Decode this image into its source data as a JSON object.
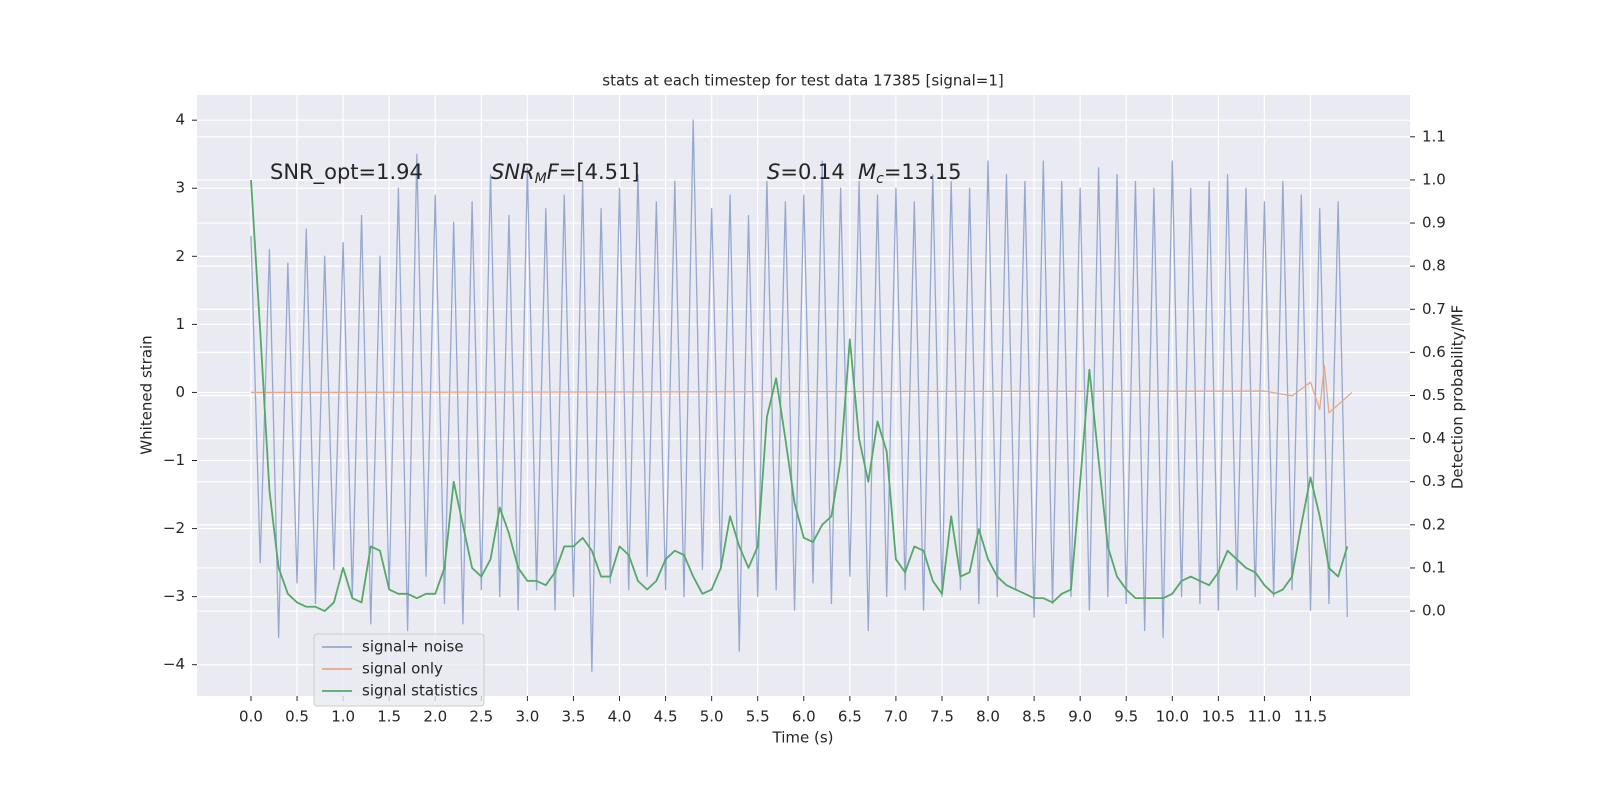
{
  "chart_data": {
    "type": "line",
    "title": "stats at each timestep for test data 17385 [signal=1]",
    "xlabel": "Time (s)",
    "ylabel": "Whitened strain",
    "y2label": "Detection probability/MF",
    "annotations": [
      [
        {
          "text": "SNR_opt=1.94",
          "style": "normal"
        }
      ],
      [
        {
          "text": "SNR",
          "style": "italic"
        },
        {
          "text": "M",
          "style": "sub"
        },
        {
          "text": "F",
          "style": "italic"
        },
        {
          "text": "=[4.51]",
          "style": "normal"
        }
      ],
      [
        {
          "text": "S",
          "style": "italic"
        },
        {
          "text": "=0.14",
          "style": "normal"
        }
      ],
      [
        {
          "text": "M",
          "style": "italic"
        },
        {
          "text": "c",
          "style": "sub"
        },
        {
          "text": "=13.15",
          "style": "normal"
        }
      ]
    ],
    "xlim": [
      -0.586,
      12.58
    ],
    "ylim": [
      -4.46,
      4.37
    ],
    "y2lim": [
      -0.197,
      1.197
    ],
    "xticks": [
      {
        "value": 0,
        "label": "0.0"
      },
      0.5,
      {
        "value": 1,
        "label": "1.0"
      },
      1.5,
      {
        "value": 2,
        "label": "2.0"
      },
      2.5,
      {
        "value": 3,
        "label": "3.0"
      },
      3.5,
      {
        "value": 4,
        "label": "4.0"
      },
      4.5,
      {
        "value": 5,
        "label": "5.0"
      },
      5.5,
      {
        "value": 6,
        "label": "6.0"
      },
      6.5,
      {
        "value": 7,
        "label": "7.0"
      },
      7.5,
      {
        "value": 8,
        "label": "8.0"
      },
      8.5,
      {
        "value": 9,
        "label": "9.0"
      },
      9.5,
      {
        "value": 10,
        "label": "10.0"
      },
      10.5,
      {
        "value": 11,
        "label": "11.0"
      },
      11.5
    ],
    "yticks": [
      {
        "value": -4,
        "label": "−4"
      },
      {
        "value": -3,
        "label": "−3"
      },
      {
        "value": -2,
        "label": "−2"
      },
      {
        "value": -1,
        "label": "−1"
      },
      0,
      1,
      2,
      3,
      4
    ],
    "y2ticks": [
      {
        "value": 0,
        "label": "0.0"
      },
      0.1,
      0.2,
      0.3,
      0.4,
      0.5,
      0.6,
      0.7,
      0.8,
      0.9,
      {
        "value": 1,
        "label": "1.0"
      },
      1.1
    ],
    "grid": true,
    "legend": "lower left",
    "x": [
      0,
      0.1,
      0.2,
      0.3,
      0.4,
      0.5,
      0.6,
      0.7,
      0.8,
      0.9,
      1,
      1.1,
      1.2,
      1.3,
      1.4,
      1.5,
      1.6,
      1.7,
      1.8,
      1.9,
      2,
      2.1,
      2.2,
      2.3,
      2.4,
      2.5,
      2.6,
      2.7,
      2.8,
      2.9,
      3,
      3.1,
      3.2,
      3.3,
      3.4,
      3.5,
      3.6,
      3.7,
      3.8,
      3.9,
      4,
      4.1,
      4.2,
      4.3,
      4.4,
      4.5,
      4.6,
      4.7,
      4.8,
      4.9,
      5,
      5.1,
      5.2,
      5.3,
      5.4,
      5.5,
      5.6,
      5.7,
      5.8,
      5.9,
      6,
      6.1,
      6.2,
      6.3,
      6.4,
      6.5,
      6.6,
      6.7,
      6.8,
      6.9,
      7,
      7.1,
      7.2,
      7.3,
      7.4,
      7.5,
      7.6,
      7.7,
      7.8,
      7.9,
      8,
      8.1,
      8.2,
      8.3,
      8.4,
      8.5,
      8.6,
      8.7,
      8.8,
      8.9,
      9,
      9.1,
      9.2,
      9.3,
      9.4,
      9.5,
      9.6,
      9.7,
      9.8,
      9.9,
      10,
      10.1,
      10.2,
      10.3,
      10.4,
      10.5,
      10.6,
      10.7,
      10.8,
      10.9,
      11,
      11.1,
      11.2,
      11.3,
      11.4,
      11.5,
      11.6,
      11.7,
      11.8,
      11.9
    ],
    "series": [
      {
        "name": "signal+ noise",
        "color": "#97a8cf",
        "values": [
          2.3,
          -2.5,
          2.1,
          -3.6,
          1.9,
          -2.8,
          2.4,
          -3.1,
          2.0,
          -2.6,
          2.2,
          -3.0,
          2.6,
          -3.4,
          2.0,
          -2.9,
          3.0,
          -3.5,
          3.5,
          -2.7,
          2.9,
          -3.1,
          2.5,
          -3.4,
          2.8,
          -2.9,
          3.2,
          -3.0,
          2.6,
          -3.2,
          3.3,
          -2.9,
          2.7,
          -3.2,
          2.9,
          -3.0,
          3.1,
          -4.1,
          2.7,
          -2.8,
          3.0,
          -2.9,
          3.2,
          -2.7,
          2.8,
          -2.9,
          3.1,
          -3.0,
          4.0,
          -2.6,
          2.7,
          -2.6,
          2.9,
          -3.8,
          2.6,
          -3.0,
          3.1,
          -2.9,
          2.8,
          -3.2,
          2.9,
          -2.8,
          3.4,
          -3.1,
          3.0,
          -2.7,
          3.1,
          -3.5,
          2.9,
          -3.0,
          3.0,
          -2.9,
          2.8,
          -3.2,
          3.2,
          -3.0,
          3.1,
          -2.9,
          3.0,
          -3.1,
          3.4,
          -3.0,
          3.2,
          -2.9,
          3.1,
          -3.3,
          3.4,
          -3.1,
          3.1,
          -3.0,
          3.0,
          -3.2,
          3.3,
          -3.0,
          3.2,
          -3.1,
          3.1,
          -3.5,
          3.0,
          -3.6,
          3.4,
          -3.0,
          3.0,
          -3.1,
          3.1,
          -3.2,
          3.2,
          -2.9,
          3.0,
          -3.0,
          2.8,
          -3.0,
          3.1,
          -2.9,
          2.9,
          -3.2,
          2.7,
          -3.1,
          2.8,
          -3.3
        ]
      },
      {
        "name": "signal only",
        "color": "#e6a88a",
        "x": [
          0,
          11.0,
          11.3,
          11.5,
          11.6,
          11.65,
          11.7,
          11.95
        ],
        "values": [
          0,
          0.02,
          -0.05,
          0.15,
          -0.25,
          0.4,
          -0.3,
          0
        ]
      },
      {
        "name": "signal statistics",
        "color": "#55a868",
        "axis": "y2",
        "values": [
          1.0,
          0.65,
          0.28,
          0.1,
          0.04,
          0.02,
          0.01,
          0.01,
          0.0,
          0.02,
          0.1,
          0.03,
          0.02,
          0.15,
          0.14,
          0.05,
          0.04,
          0.04,
          0.03,
          0.04,
          0.04,
          0.1,
          0.3,
          0.2,
          0.1,
          0.08,
          0.12,
          0.24,
          0.18,
          0.1,
          0.07,
          0.07,
          0.06,
          0.09,
          0.15,
          0.15,
          0.17,
          0.14,
          0.08,
          0.08,
          0.15,
          0.13,
          0.07,
          0.05,
          0.07,
          0.12,
          0.14,
          0.13,
          0.08,
          0.04,
          0.05,
          0.1,
          0.22,
          0.15,
          0.1,
          0.15,
          0.45,
          0.54,
          0.4,
          0.25,
          0.17,
          0.16,
          0.2,
          0.22,
          0.35,
          0.63,
          0.4,
          0.3,
          0.44,
          0.37,
          0.12,
          0.09,
          0.15,
          0.14,
          0.07,
          0.04,
          0.22,
          0.08,
          0.09,
          0.19,
          0.12,
          0.08,
          0.06,
          0.05,
          0.04,
          0.03,
          0.03,
          0.02,
          0.04,
          0.05,
          0.3,
          0.56,
          0.35,
          0.15,
          0.08,
          0.05,
          0.03,
          0.03,
          0.03,
          0.03,
          0.04,
          0.07,
          0.08,
          0.07,
          0.06,
          0.09,
          0.14,
          0.12,
          0.1,
          0.09,
          0.06,
          0.04,
          0.05,
          0.08,
          0.2,
          0.31,
          0.22,
          0.1,
          0.08,
          0.15
        ]
      }
    ]
  }
}
